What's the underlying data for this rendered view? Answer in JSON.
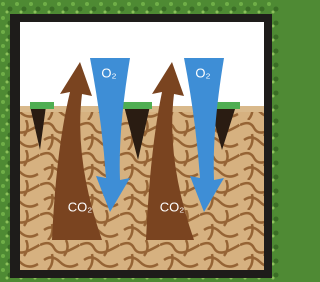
{
  "arrows": [
    {
      "label": "CO₂"
    },
    {
      "label": "O₂"
    },
    {
      "label": "CO₂"
    },
    {
      "label": "O₂"
    }
  ]
}
